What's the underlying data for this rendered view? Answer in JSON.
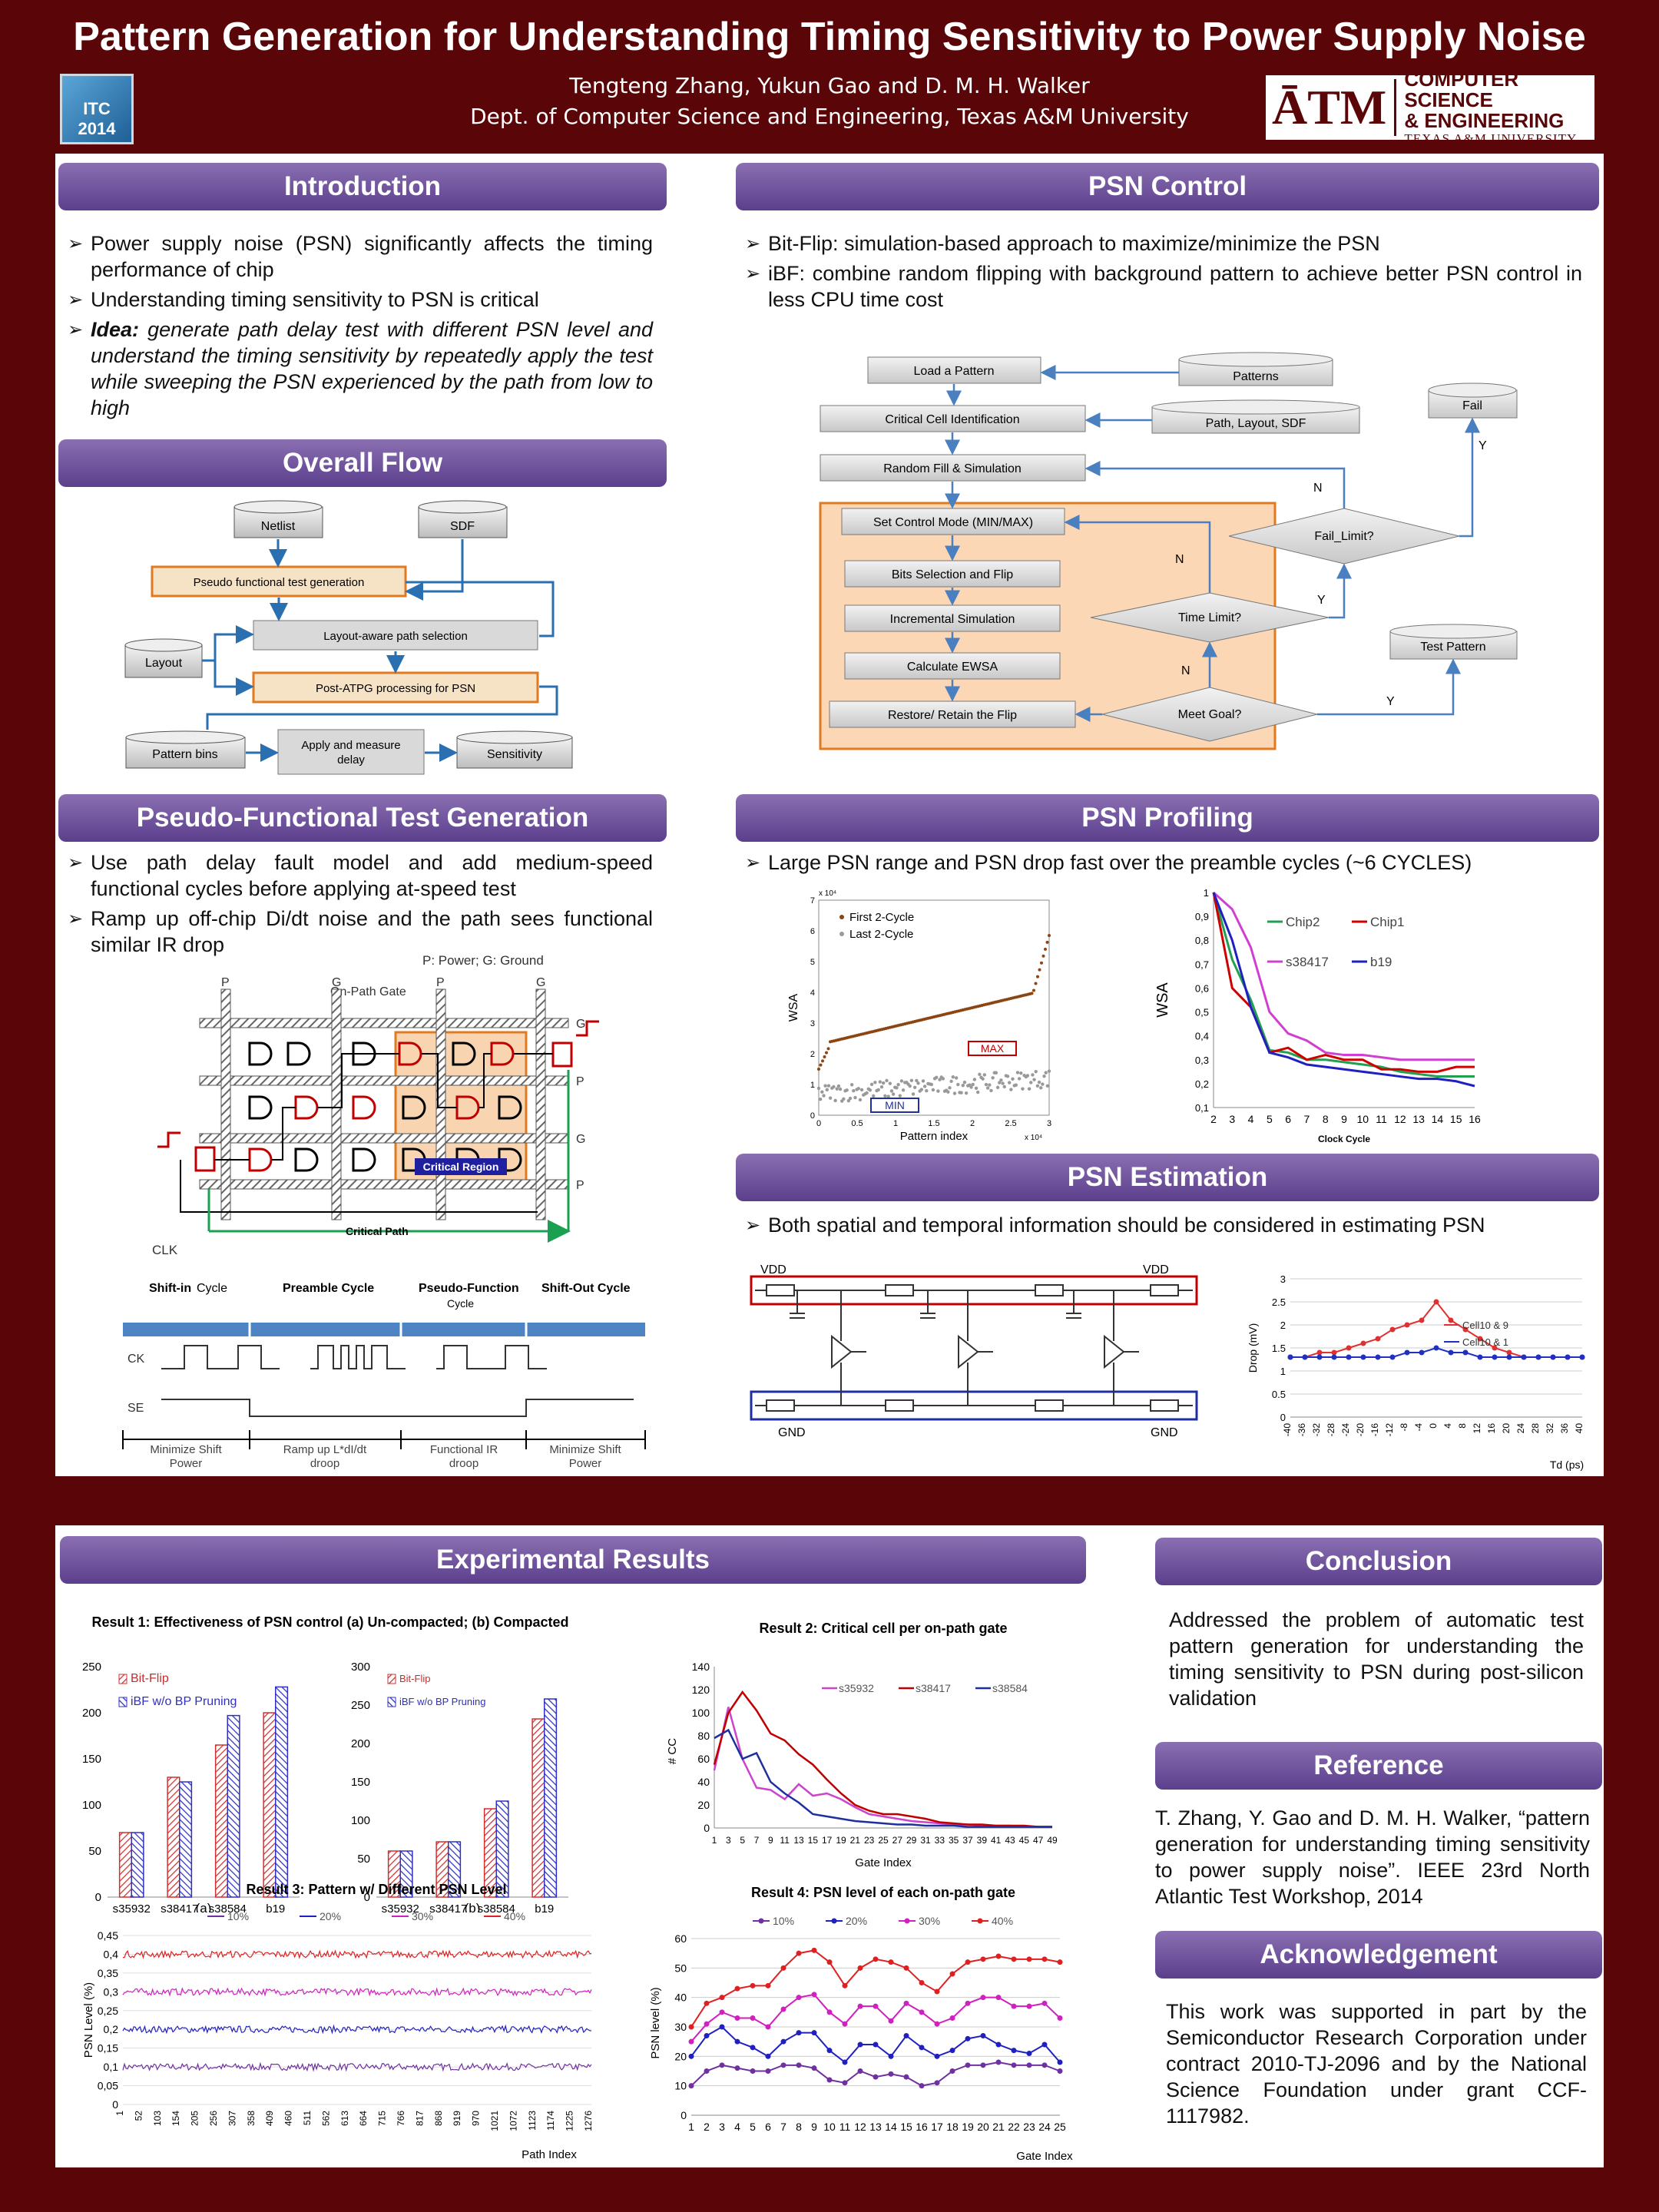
{
  "poster": {
    "title": "Pattern Generation for Understanding Timing Sensitivity to Power Supply Noise",
    "authors": "Tengteng Zhang, Yukun Gao and D. M. H. Walker",
    "affiliation": "Dept. of Computer Science and Engineering, Texas A&M University",
    "conf_logo": "ITC 2014",
    "univ_logo": {
      "mark": "ĀTM",
      "line1": "COMPUTER SCIENCE",
      "line2": "& ENGINEERING",
      "line3": "TEXAS A&M UNIVERSITY"
    }
  },
  "intro": {
    "title": "Introduction",
    "b1": "Power supply noise (PSN) significantly affects the timing performance of chip",
    "b2": "Understanding timing sensitivity to PSN is critical",
    "idea_label": "Idea:",
    "idea": " generate path delay test with different PSN level and understand the timing sensitivity by repeatedly apply the test while sweeping the PSN experienced by the path from low to high"
  },
  "flow": {
    "title": "Overall Flow",
    "netlist": "Netlist",
    "sdf": "SDF",
    "pseudo": "Pseudo functional test generation",
    "layout_aware": "Layout-aware path selection",
    "layout": "Layout",
    "post_atpg": "Post-ATPG processing for PSN",
    "pattern_bins": "Pattern bins",
    "apply1": "Apply and measure",
    "apply2": "delay",
    "sensitivity": "Sensitivity"
  },
  "pftg": {
    "title": "Pseudo-Functional Test Generation",
    "b1": "Use path delay fault model and add medium-speed functional cycles before applying at-speed test",
    "b2": "Ramp up off-chip Di/dt noise and the path sees functional similar IR drop",
    "legend": "P: Power; G: Ground",
    "on_path": "On-Path Gate",
    "critical_region": "Critical Region",
    "critical_path": "Critical Path",
    "clk": "CLK",
    "p": "P",
    "g": "G",
    "shift_in": "Shift-in",
    "cycle": "Cycle",
    "preamble": "Preamble Cycle",
    "pseudo_function": "Pseudo-Function",
    "shift_out": "Shift-Out Cycle",
    "ck": "CK",
    "se": "SE",
    "m1a": "Minimize Shift",
    "m1b": "Power",
    "m2a": "Ramp up L*dI/dt",
    "m2b": "droop",
    "m3a": "Functional IR",
    "m3b": "droop",
    "m4a": "Minimize Shift",
    "m4b": "Power"
  },
  "psnc": {
    "title": "PSN Control",
    "b1": "Bit-Flip: simulation-based approach to maximize/minimize the PSN",
    "b2": "iBF: combine random flipping with background pattern to achieve better PSN control in less CPU time cost",
    "load": "Load a Pattern",
    "patterns": "Patterns",
    "fail": "Fail",
    "critical": "Critical Cell Identification",
    "pls": "Path, Layout, SDF",
    "random": "Random Fill & Simulation",
    "control": "Set Control Mode (MIN/MAX)",
    "fail_limit": "Fail_Limit?",
    "bits": "Bits Selection and Flip",
    "incr": "Incremental Simulation",
    "time_limit": "Time Limit?",
    "ewsa": "Calculate EWSA",
    "test_pattern": "Test Pattern",
    "restore": "Restore/ Retain the Flip",
    "meet": "Meet Goal?",
    "y": "Y",
    "n": "N"
  },
  "profiling": {
    "title": "PSN Profiling",
    "b1": "Large PSN range and PSN drop fast over the preamble cycles (~6 CYCLES)",
    "left": {
      "ylabel": "WSA",
      "xlabel": "Pattern index",
      "leg1": "First 2-Cycle",
      "leg2": "Last 2-Cycle",
      "max": "MAX",
      "min": "MIN",
      "exp": "x 10⁴",
      "xexp": "x 10⁴"
    },
    "right": {
      "ylabel": "WSA",
      "xlabel": "Clock Cycle"
    }
  },
  "estimation": {
    "title": "PSN Estimation",
    "b1": "Both spatial and temporal information should be considered in estimating PSN",
    "vdd": "VDD",
    "gnd": "GND",
    "ylabel": "Drop (mV)",
    "xlabel": "Td (ps)",
    "leg1": "Cell10 & 9",
    "leg2": "Cell10 & 1"
  },
  "results": {
    "title": "Experimental Results",
    "r1": "Result 1: Effectiveness of PSN control (a) Un-compacted; (b) Compacted",
    "r2": "Result 2: Critical cell per on-path  gate",
    "r3": "Result 3: Pattern w/ Different PSN Level",
    "r4": "Result 4: PSN level of each on-path gate",
    "leg_bf": "Bit-Flip",
    "leg_ibf": "iBF w/o BP Pruning",
    "a": "(a)",
    "b": "(b)",
    "r2_ylabel": "# CC",
    "r2_xlabel": "Gate Index",
    "r3_ylabel": "PSN Level (%)",
    "r3_xlabel": "Path Index",
    "r4_ylabel": "PSN level (%)",
    "r4_xlabel": "Gate Index"
  },
  "conclusion": {
    "title": "Conclusion",
    "text": "Addressed the problem of automatic test pattern generation for understanding the timing sensitivity to PSN during post-silicon validation"
  },
  "reference": {
    "title": "Reference",
    "text": "T. Zhang, Y. Gao and D. M. H. Walker, “pattern generation for understanding timing sensitivity to power supply noise”. IEEE 23rd North Atlantic Test Workshop, 2014"
  },
  "ack": {
    "title": "Acknowledgement",
    "text": "This work was supported in part by the Semiconductor Research Corporation under contract 2010-TJ-2096 and by the National Science Foundation under grant CCF-1117982."
  },
  "chart_data": [
    {
      "type": "bar",
      "title": "Result 1 (a) Un-compacted",
      "categories": [
        "s35932",
        "s38417",
        "s38584",
        "b19"
      ],
      "series": [
        {
          "name": "Bit-Flip",
          "values": [
            70,
            130,
            165,
            200
          ]
        },
        {
          "name": "iBF w/o BP Pruning",
          "values": [
            70,
            125,
            197,
            228
          ]
        }
      ],
      "ylim": [
        0,
        250
      ],
      "yticks": [
        0,
        50,
        100,
        150,
        200,
        250
      ]
    },
    {
      "type": "bar",
      "title": "Result 1 (b) Compacted",
      "categories": [
        "s35932",
        "s38417",
        "s38584",
        "b19"
      ],
      "series": [
        {
          "name": "Bit-Flip",
          "values": [
            60,
            72,
            115,
            232
          ]
        },
        {
          "name": "iBF w/o BP Pruning",
          "values": [
            60,
            72,
            125,
            258
          ]
        }
      ],
      "ylim": [
        0,
        300
      ],
      "yticks": [
        0,
        50,
        100,
        150,
        200,
        250,
        300
      ]
    },
    {
      "type": "line",
      "title": "Result 2: Critical cell per on-path  gate",
      "xlabel": "Gate Index",
      "ylabel": "# CC",
      "ylim": [
        0,
        140
      ],
      "yticks": [
        0,
        20,
        40,
        60,
        80,
        100,
        120,
        140
      ],
      "xticks": [
        "1",
        "3",
        "5",
        "7",
        "9",
        "11",
        "13",
        "15",
        "17",
        "19",
        "21",
        "23",
        "25",
        "27",
        "29",
        "31",
        "33",
        "35",
        "37",
        "39",
        "41",
        "43",
        "45",
        "47",
        "49"
      ],
      "series": [
        {
          "name": "s35932",
          "color": "#cc44cc",
          "values": [
            50,
            105,
            60,
            35,
            33,
            25,
            38,
            28,
            30,
            25,
            18,
            12,
            10,
            8,
            6,
            5,
            4,
            3,
            3,
            2,
            2,
            2,
            1,
            1,
            1
          ]
        },
        {
          "name": "s38417",
          "color": "#c00000",
          "values": [
            55,
            100,
            118,
            102,
            82,
            76,
            64,
            55,
            42,
            30,
            20,
            15,
            12,
            12,
            10,
            8,
            5,
            4,
            3,
            3,
            2,
            2,
            2,
            1,
            1
          ]
        },
        {
          "name": "s38584",
          "color": "#1f2fa0",
          "values": [
            78,
            85,
            60,
            65,
            40,
            30,
            22,
            12,
            10,
            8,
            6,
            5,
            4,
            3,
            3,
            2,
            2,
            2,
            1,
            1,
            1,
            1,
            1,
            1,
            1
          ]
        }
      ]
    },
    {
      "type": "line",
      "title": "Result 3: Pattern w/ Different PSN Level",
      "xlabel": "Path Index",
      "ylabel": "PSN Level (%)",
      "ylim": [
        0,
        0.45
      ],
      "yticks": [
        "0",
        "0,05",
        "0,1",
        "0,15",
        "0,2",
        "0,25",
        "0,3",
        "0,35",
        "0,4",
        "0,45"
      ],
      "xticks": [
        "1",
        "52",
        "103",
        "154",
        "205",
        "256",
        "307",
        "358",
        "409",
        "460",
        "511",
        "562",
        "613",
        "664",
        "715",
        "766",
        "817",
        "868",
        "919",
        "970",
        "1021",
        "1072",
        "1123",
        "1174",
        "1225",
        "1276"
      ],
      "series": [
        {
          "name": "10%",
          "color": "#7030a0",
          "level": 0.1
        },
        {
          "name": "20%",
          "color": "#2020c0",
          "level": 0.2
        },
        {
          "name": "30%",
          "color": "#d020c0",
          "level": 0.3
        },
        {
          "name": "40%",
          "color": "#e02020",
          "level": 0.4
        }
      ]
    },
    {
      "type": "line",
      "title": "Result 4: PSN level of each on-path gate",
      "xlabel": "Gate Index",
      "ylabel": "PSN level (%)",
      "ylim": [
        0,
        60
      ],
      "yticks": [
        0,
        10,
        20,
        30,
        40,
        50,
        60
      ],
      "categories": [
        "1",
        "2",
        "3",
        "4",
        "5",
        "6",
        "7",
        "8",
        "9",
        "10",
        "11",
        "12",
        "13",
        "14",
        "15",
        "16",
        "17",
        "18",
        "19",
        "20",
        "21",
        "22",
        "23",
        "24",
        "25"
      ],
      "series": [
        {
          "name": "10%",
          "color": "#7030a0",
          "values": [
            10,
            15,
            17,
            16,
            15,
            15,
            17,
            17,
            16,
            12,
            11,
            15,
            13,
            14,
            13,
            10,
            11,
            15,
            17,
            17,
            18,
            17,
            17,
            17,
            15
          ]
        },
        {
          "name": "20%",
          "color": "#2020c0",
          "values": [
            20,
            27,
            30,
            25,
            23,
            20,
            25,
            28,
            28,
            22,
            18,
            24,
            24,
            20,
            27,
            23,
            20,
            22,
            26,
            27,
            24,
            22,
            21,
            24,
            18
          ]
        },
        {
          "name": "30%",
          "color": "#d020c0",
          "values": [
            25,
            31,
            35,
            33,
            33,
            30,
            36,
            40,
            41,
            35,
            31,
            37,
            37,
            32,
            38,
            35,
            31,
            33,
            38,
            40,
            40,
            37,
            37,
            38,
            33
          ]
        },
        {
          "name": "40%",
          "color": "#e02020",
          "values": [
            30,
            38,
            40,
            43,
            44,
            44,
            50,
            55,
            56,
            52,
            44,
            50,
            53,
            52,
            50,
            45,
            42,
            48,
            52,
            53,
            54,
            53,
            53,
            53,
            52
          ]
        }
      ]
    },
    {
      "type": "line",
      "title": "PSN Profiling (right)",
      "xlabel": "Clock Cycle",
      "ylabel": "WSA",
      "ylim": [
        0.1,
        1
      ],
      "yticks": [
        "0,1",
        "0,2",
        "0,3",
        "0,4",
        "0,5",
        "0,6",
        "0,7",
        "0,8",
        "0,9",
        "1"
      ],
      "categories": [
        "2",
        "3",
        "4",
        "5",
        "6",
        "7",
        "8",
        "9",
        "10",
        "11",
        "12",
        "13",
        "14",
        "15",
        "16"
      ],
      "series": [
        {
          "name": "Chip2",
          "color": "#20a050",
          "values": [
            1,
            0.72,
            0.55,
            0.34,
            0.33,
            0.3,
            0.3,
            0.29,
            0.28,
            0.27,
            0.25,
            0.24,
            0.23,
            0.23,
            0.23
          ]
        },
        {
          "name": "Chip1",
          "color": "#d00000",
          "values": [
            1,
            0.6,
            0.52,
            0.33,
            0.35,
            0.3,
            0.32,
            0.3,
            0.3,
            0.26,
            0.26,
            0.25,
            0.25,
            0.27,
            0.27
          ]
        },
        {
          "name": "s38417",
          "color": "#d040d0",
          "values": [
            1,
            0.93,
            0.77,
            0.5,
            0.41,
            0.38,
            0.33,
            0.32,
            0.32,
            0.31,
            0.3,
            0.3,
            0.3,
            0.3,
            0.3
          ]
        },
        {
          "name": "b19",
          "color": "#2020c0",
          "values": [
            1,
            0.8,
            0.52,
            0.33,
            0.31,
            0.28,
            0.27,
            0.26,
            0.25,
            0.24,
            0.23,
            0.22,
            0.22,
            0.21,
            0.19
          ]
        }
      ]
    },
    {
      "type": "scatter",
      "title": "PSN Profiling (left)",
      "xlabel": "Pattern index",
      "ylabel": "WSA",
      "xlim": [
        0,
        3
      ],
      "ylim": [
        0,
        7
      ],
      "xticks": [
        "0",
        "0.5",
        "1",
        "1.5",
        "2",
        "2.5",
        "3"
      ],
      "yticks": [
        "0",
        "1",
        "2",
        "3",
        "4",
        "5",
        "6",
        "7"
      ],
      "series": [
        {
          "name": "First 2-Cycle",
          "color": "#8b4513"
        },
        {
          "name": "Last 2-Cycle",
          "color": "#888888"
        }
      ]
    },
    {
      "type": "line",
      "title": "PSN Estimation",
      "xlabel": "Td (ps)",
      "ylabel": "Drop (mV)",
      "ylim": [
        0,
        3
      ],
      "yticks": [
        "0",
        "0.5",
        "1",
        "1.5",
        "2",
        "2.5",
        "3"
      ],
      "categories": [
        "-40",
        "-36",
        "-32",
        "-28",
        "-24",
        "-20",
        "-16",
        "-12",
        "-8",
        "-4",
        "0",
        "4",
        "8",
        "12",
        "16",
        "20",
        "24",
        "28",
        "32",
        "36",
        "40"
      ],
      "series": [
        {
          "name": "Cell10 & 9",
          "color": "#e03030",
          "values": [
            1.3,
            1.3,
            1.4,
            1.4,
            1.5,
            1.6,
            1.7,
            1.9,
            2.0,
            2.1,
            2.5,
            2.1,
            1.9,
            1.7,
            1.5,
            1.4,
            1.3,
            1.3,
            1.3,
            1.3,
            1.3
          ]
        },
        {
          "name": "Cell10 & 1",
          "color": "#2030c0",
          "values": [
            1.3,
            1.3,
            1.3,
            1.3,
            1.3,
            1.3,
            1.3,
            1.3,
            1.4,
            1.4,
            1.5,
            1.4,
            1.4,
            1.3,
            1.3,
            1.3,
            1.3,
            1.3,
            1.3,
            1.3,
            1.3
          ]
        }
      ]
    }
  ]
}
